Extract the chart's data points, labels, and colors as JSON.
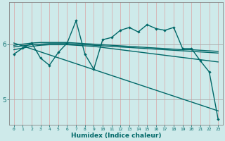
{
  "xlabel": "Humidex (Indice chaleur)",
  "bg_color": "#ceeaea",
  "grid_color_v": "#b8d8d8",
  "grid_color_h": "#aaaaaa",
  "line_color": "#006868",
  "xlim": [
    -0.5,
    23.5
  ],
  "ylim": [
    4.55,
    6.75
  ],
  "yticks": [
    5,
    6
  ],
  "xticks": [
    0,
    1,
    2,
    3,
    4,
    5,
    6,
    7,
    8,
    9,
    10,
    11,
    12,
    13,
    14,
    15,
    16,
    17,
    18,
    19,
    20,
    21,
    22,
    23
  ],
  "lines": [
    {
      "x": [
        0,
        1,
        2,
        3,
        4,
        5,
        6,
        7,
        8,
        9,
        10,
        11,
        12,
        13,
        14,
        15,
        16,
        17,
        18,
        19,
        20,
        21,
        22,
        23
      ],
      "y": [
        5.82,
        5.93,
        6.02,
        5.75,
        5.62,
        5.85,
        6.02,
        6.42,
        5.82,
        5.55,
        6.08,
        6.12,
        6.25,
        6.3,
        6.22,
        6.35,
        6.28,
        6.25,
        6.3,
        5.92,
        5.92,
        5.7,
        5.5,
        4.65
      ],
      "with_markers": true,
      "lw": 1.0
    },
    {
      "x": [
        0,
        1,
        2,
        3,
        4,
        5,
        6,
        7,
        8,
        9,
        10,
        11,
        12,
        13,
        14,
        15,
        16,
        17,
        18,
        19,
        20,
        21,
        22,
        23
      ],
      "y": [
        5.98,
        6.0,
        6.02,
        6.03,
        6.03,
        6.03,
        6.03,
        6.02,
        6.01,
        6.0,
        5.99,
        5.98,
        5.97,
        5.96,
        5.95,
        5.94,
        5.93,
        5.92,
        5.91,
        5.9,
        5.9,
        5.89,
        5.88,
        5.87
      ],
      "with_markers": false,
      "lw": 1.0
    },
    {
      "x": [
        0,
        1,
        2,
        3,
        4,
        5,
        6,
        7,
        8,
        9,
        10,
        11,
        12,
        13,
        14,
        15,
        16,
        17,
        18,
        19,
        20,
        21,
        22,
        23
      ],
      "y": [
        5.95,
        5.97,
        5.99,
        6.0,
        6.01,
        6.01,
        6.01,
        6.0,
        5.99,
        5.98,
        5.97,
        5.96,
        5.95,
        5.94,
        5.93,
        5.92,
        5.91,
        5.9,
        5.89,
        5.88,
        5.87,
        5.86,
        5.85,
        5.84
      ],
      "with_markers": false,
      "lw": 1.0
    },
    {
      "x": [
        0,
        1,
        2,
        3,
        4,
        5,
        6,
        7,
        8,
        9,
        10,
        11,
        12,
        13,
        14,
        15,
        16,
        17,
        18,
        19,
        20,
        21,
        22,
        23
      ],
      "y": [
        5.9,
        5.93,
        5.96,
        5.98,
        5.99,
        5.99,
        5.99,
        5.98,
        5.97,
        5.96,
        5.94,
        5.92,
        5.9,
        5.88,
        5.86,
        5.84,
        5.82,
        5.8,
        5.78,
        5.76,
        5.74,
        5.72,
        5.7,
        5.68
      ],
      "with_markers": false,
      "lw": 1.0
    },
    {
      "x": [
        0,
        23
      ],
      "y": [
        6.02,
        4.8
      ],
      "with_markers": false,
      "lw": 1.0
    }
  ]
}
